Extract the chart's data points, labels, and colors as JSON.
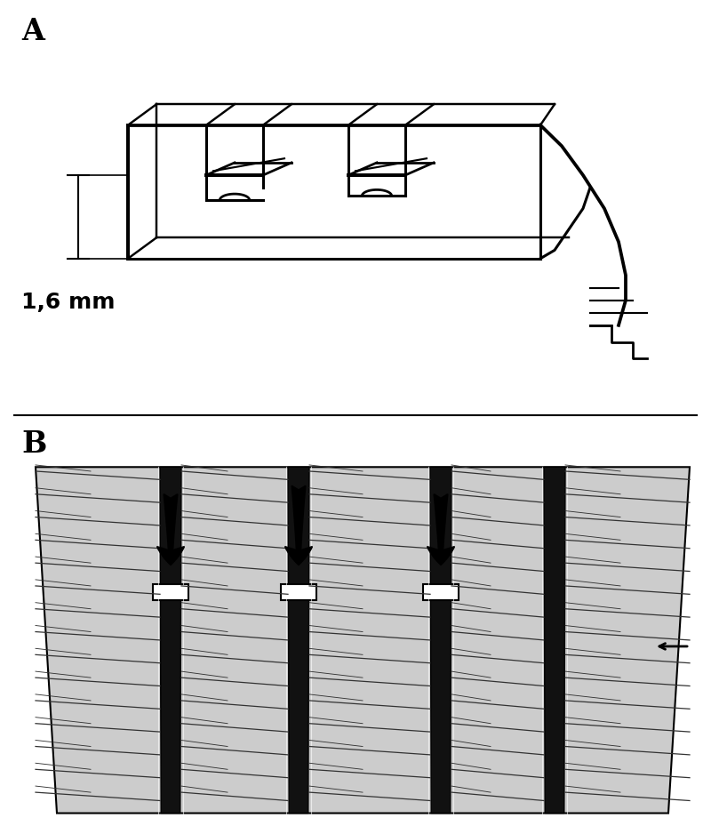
{
  "bg_color": "#ffffff",
  "label_A": "A",
  "label_B": "B",
  "measurement_text": "1,6 mm",
  "line_color": "#000000",
  "gray_color": "#c8c8c8",
  "dark_gray": "#888888"
}
